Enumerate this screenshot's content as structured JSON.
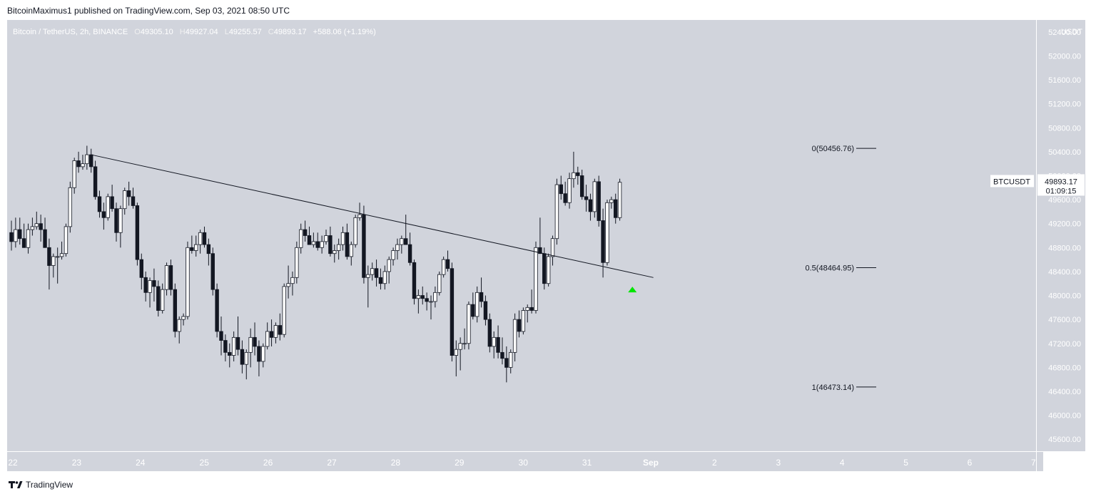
{
  "header": {
    "published": "BitcoinMaximus1 published on TradingView.com, Sep 03, 2021 08:50 UTC"
  },
  "legend": {
    "symbol": "Bitcoin / TetherUS, 2h, BINANCE",
    "open_label": "O",
    "open": "49305.10",
    "high_label": "H",
    "high": "49927.04",
    "low_label": "L",
    "low": "49255.57",
    "close_label": "C",
    "close": "49893.17",
    "change": "+588.06 (+1.19%)"
  },
  "price_axis": {
    "currency": "USDT",
    "ticks": [
      "52400.00",
      "52000.00",
      "51600.00",
      "51200.00",
      "50800.00",
      "50400.00",
      "50000.00",
      "49600.00",
      "49200.00",
      "48800.00",
      "48400.00",
      "48000.00",
      "47600.00",
      "47200.00",
      "46800.00",
      "46400.00",
      "46000.00",
      "45600.00"
    ]
  },
  "time_axis": {
    "labels": [
      "22",
      "23",
      "24",
      "25",
      "26",
      "27",
      "28",
      "29",
      "30",
      "31",
      "Sep",
      "2",
      "3",
      "4",
      "5",
      "6",
      "7"
    ]
  },
  "last_price": {
    "symbol": "BTCUSDT",
    "price": "49893.17",
    "countdown": "01:09:15"
  },
  "fib_levels": [
    {
      "label": "0(50456.76)",
      "price": 50456.76
    },
    {
      "label": "0.5(48464.95)",
      "price": 48464.95
    },
    {
      "label": "1(46473.14)",
      "price": 46473.14
    }
  ],
  "footer": {
    "brand": "TradingView"
  },
  "colors": {
    "bg": "#d1d4dc",
    "up": "#ffffff",
    "down": "#131722",
    "arrow": "#00e600"
  },
  "chart_data": {
    "type": "candlestick",
    "title": "Bitcoin / TetherUS, 2h, BINANCE",
    "ylim": [
      45400,
      52600
    ],
    "grid": false,
    "candles": [
      [
        49050,
        49250,
        48750,
        48900
      ],
      [
        48900,
        49300,
        48800,
        49100
      ],
      [
        49100,
        49300,
        48850,
        48950
      ],
      [
        48950,
        49200,
        48800,
        48800
      ],
      [
        48800,
        49200,
        48700,
        49100
      ],
      [
        49100,
        49300,
        49000,
        49150
      ],
      [
        49150,
        49400,
        49100,
        49200
      ],
      [
        49200,
        49350,
        48900,
        49100
      ],
      [
        49100,
        49300,
        48800,
        48800
      ],
      [
        48800,
        48950,
        48100,
        48500
      ],
      [
        48500,
        48700,
        48300,
        48650
      ],
      [
        48650,
        48800,
        48200,
        48650
      ],
      [
        48650,
        48900,
        48600,
        48700
      ],
      [
        48700,
        49200,
        48650,
        49150
      ],
      [
        49150,
        49900,
        49050,
        49800
      ],
      [
        49800,
        50300,
        49700,
        50250
      ],
      [
        50250,
        50400,
        50050,
        50150
      ],
      [
        50150,
        50350,
        50100,
        50200
      ],
      [
        50200,
        50500,
        50100,
        50350
      ],
      [
        50350,
        50450,
        50050,
        50150
      ],
      [
        50150,
        50250,
        49600,
        49650
      ],
      [
        49650,
        49750,
        49300,
        49400
      ],
      [
        49400,
        49550,
        49100,
        49300
      ],
      [
        49300,
        49700,
        49250,
        49650
      ],
      [
        49650,
        49850,
        49400,
        49450
      ],
      [
        49450,
        49550,
        48900,
        49050
      ],
      [
        49050,
        49500,
        48800,
        49450
      ],
      [
        49450,
        49800,
        49350,
        49750
      ],
      [
        49750,
        49900,
        49500,
        49650
      ],
      [
        49650,
        49800,
        49450,
        49500
      ],
      [
        49500,
        49550,
        48500,
        48600
      ],
      [
        48600,
        48700,
        48100,
        48300
      ],
      [
        48300,
        48400,
        47900,
        48050
      ],
      [
        48050,
        48300,
        47800,
        48250
      ],
      [
        48250,
        48450,
        47900,
        48150
      ],
      [
        48150,
        48250,
        47650,
        47750
      ],
      [
        47750,
        48200,
        47700,
        48100
      ],
      [
        48100,
        48550,
        48000,
        48500
      ],
      [
        48500,
        48600,
        48000,
        48100
      ],
      [
        48100,
        48200,
        47300,
        47400
      ],
      [
        47400,
        47650,
        47200,
        47600
      ],
      [
        47600,
        47700,
        47500,
        47650
      ],
      [
        47650,
        48900,
        47600,
        48800
      ],
      [
        48800,
        49000,
        48700,
        48750
      ],
      [
        48750,
        49000,
        48650,
        48850
      ],
      [
        48850,
        49100,
        48700,
        49050
      ],
      [
        49050,
        49150,
        48800,
        48850
      ],
      [
        48850,
        48950,
        48500,
        48700
      ],
      [
        48700,
        48800,
        48000,
        48100
      ],
      [
        48100,
        48200,
        47300,
        47400
      ],
      [
        47400,
        47650,
        47000,
        47250
      ],
      [
        47250,
        47350,
        46900,
        47050
      ],
      [
        47050,
        47200,
        46800,
        47000
      ],
      [
        47000,
        47400,
        46900,
        47300
      ],
      [
        47300,
        47650,
        47000,
        47100
      ],
      [
        47100,
        47250,
        46700,
        46850
      ],
      [
        46850,
        47100,
        46600,
        47050
      ],
      [
        47050,
        47450,
        46800,
        47300
      ],
      [
        47300,
        47550,
        47000,
        47150
      ],
      [
        47150,
        47250,
        46650,
        46900
      ],
      [
        46900,
        47200,
        46800,
        47150
      ],
      [
        47150,
        47550,
        47100,
        47400
      ],
      [
        47400,
        47600,
        47150,
        47300
      ],
      [
        47300,
        47550,
        47200,
        47500
      ],
      [
        47500,
        47700,
        47250,
        47350
      ],
      [
        47350,
        48200,
        47300,
        48150
      ],
      [
        48150,
        48500,
        47950,
        48200
      ],
      [
        48200,
        48400,
        48000,
        48300
      ],
      [
        48300,
        48900,
        48200,
        48800
      ],
      [
        48800,
        49200,
        48700,
        49100
      ],
      [
        49100,
        49250,
        48900,
        49000
      ],
      [
        49000,
        49150,
        48850,
        48850
      ],
      [
        48850,
        49050,
        48800,
        48900
      ],
      [
        48900,
        49050,
        48750,
        48800
      ],
      [
        48800,
        49000,
        48700,
        48900
      ],
      [
        48900,
        49100,
        48850,
        49000
      ],
      [
        49000,
        49150,
        48650,
        48700
      ],
      [
        48700,
        48850,
        48550,
        48750
      ],
      [
        48750,
        48950,
        48600,
        48850
      ],
      [
        48850,
        49150,
        48750,
        49050
      ],
      [
        49050,
        49200,
        48600,
        48650
      ],
      [
        48650,
        48900,
        48500,
        48850
      ],
      [
        48850,
        49350,
        48800,
        49300
      ],
      [
        49300,
        49550,
        49250,
        49350
      ],
      [
        49350,
        49500,
        48200,
        48300
      ],
      [
        48300,
        48500,
        47800,
        48350
      ],
      [
        48350,
        48550,
        48250,
        48450
      ],
      [
        48450,
        48600,
        48150,
        48300
      ],
      [
        48300,
        48450,
        48100,
        48200
      ],
      [
        48200,
        48500,
        48100,
        48400
      ],
      [
        48400,
        48650,
        48200,
        48600
      ],
      [
        48600,
        48800,
        48500,
        48750
      ],
      [
        48750,
        48950,
        48600,
        48850
      ],
      [
        48850,
        49000,
        48700,
        48950
      ],
      [
        48950,
        49350,
        48850,
        48850
      ],
      [
        48850,
        49050,
        48500,
        48550
      ],
      [
        48550,
        48600,
        47850,
        47950
      ],
      [
        47950,
        48100,
        47700,
        48000
      ],
      [
        48000,
        48150,
        47850,
        47950
      ],
      [
        47950,
        48050,
        47750,
        47900
      ],
      [
        47900,
        48000,
        47600,
        47900
      ],
      [
        47900,
        48150,
        47800,
        48050
      ],
      [
        48050,
        48400,
        48000,
        48350
      ],
      [
        48350,
        48650,
        48300,
        48600
      ],
      [
        48600,
        48750,
        48400,
        48450
      ],
      [
        48450,
        48550,
        46900,
        47000
      ],
      [
        47000,
        47250,
        46650,
        47100
      ],
      [
        47100,
        47300,
        46750,
        47200
      ],
      [
        47200,
        47450,
        47100,
        47200
      ],
      [
        47200,
        47900,
        47100,
        47850
      ],
      [
        47850,
        48050,
        47600,
        47650
      ],
      [
        47650,
        48150,
        47550,
        48050
      ],
      [
        48050,
        48300,
        47800,
        47900
      ],
      [
        47900,
        48000,
        47500,
        47600
      ],
      [
        47600,
        47700,
        47050,
        47150
      ],
      [
        47150,
        47400,
        46950,
        47300
      ],
      [
        47300,
        47500,
        46950,
        47050
      ],
      [
        47050,
        47300,
        46850,
        46950
      ],
      [
        46950,
        47150,
        46550,
        46800
      ],
      [
        46800,
        47100,
        46700,
        47050
      ],
      [
        47050,
        47700,
        46900,
        47600
      ],
      [
        47600,
        47750,
        47300,
        47400
      ],
      [
        47400,
        47800,
        47350,
        47750
      ],
      [
        47750,
        47850,
        47550,
        47800
      ],
      [
        47800,
        48100,
        47700,
        47750
      ],
      [
        47750,
        48900,
        47700,
        48800
      ],
      [
        48800,
        49300,
        48700,
        48700
      ],
      [
        48700,
        48800,
        48100,
        48200
      ],
      [
        48200,
        48700,
        48150,
        48650
      ],
      [
        48650,
        49000,
        48500,
        48950
      ],
      [
        48950,
        49950,
        48850,
        49850
      ],
      [
        49850,
        50000,
        49600,
        49700
      ],
      [
        49700,
        49900,
        49500,
        49550
      ],
      [
        49550,
        50050,
        49450,
        49950
      ],
      [
        49950,
        50400,
        49800,
        50050
      ],
      [
        50050,
        50150,
        49850,
        50000
      ],
      [
        50000,
        50100,
        49600,
        49650
      ],
      [
        49650,
        49850,
        49400,
        49600
      ],
      [
        49600,
        49700,
        49250,
        49400
      ],
      [
        49400,
        49950,
        49300,
        49900
      ],
      [
        49900,
        50000,
        49150,
        49250
      ],
      [
        49250,
        49450,
        48300,
        48550
      ],
      [
        48550,
        49600,
        48500,
        49550
      ],
      [
        49550,
        49650,
        49450,
        49600
      ],
      [
        49600,
        49700,
        49200,
        49300
      ],
      [
        49300,
        49950,
        49250,
        49890
      ]
    ],
    "trendline": {
      "from": {
        "candle": 19,
        "price": 50350
      },
      "to": {
        "candle": 153,
        "price": 48300
      }
    },
    "fib_levels": [
      50456.76,
      48464.95,
      46473.14
    ]
  }
}
